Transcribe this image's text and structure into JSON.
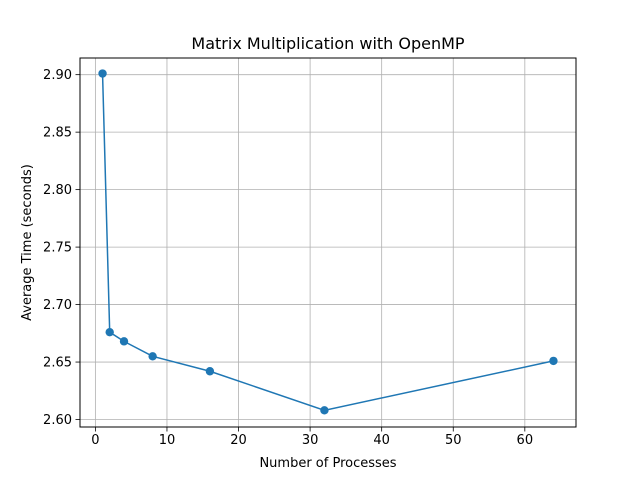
{
  "chart_data": {
    "type": "line",
    "title": "Matrix Multiplication with OpenMP",
    "xlabel": "Number of Processes",
    "ylabel": "Average Time (seconds)",
    "xlim": [
      -2.15,
      67.15
    ],
    "ylim": [
      2.5935,
      2.9145
    ],
    "xticks": [
      0,
      10,
      20,
      30,
      40,
      50,
      60
    ],
    "xtick_labels": [
      "0",
      "10",
      "20",
      "30",
      "40",
      "50",
      "60"
    ],
    "yticks": [
      2.6,
      2.65,
      2.7,
      2.75,
      2.8,
      2.85,
      2.9
    ],
    "ytick_labels": [
      "2.60",
      "2.65",
      "2.70",
      "2.75",
      "2.80",
      "2.85",
      "2.90"
    ],
    "grid": true,
    "series": [
      {
        "x": [
          1,
          2,
          4,
          8,
          16,
          32,
          64
        ],
        "y": [
          2.901,
          2.676,
          2.668,
          2.655,
          2.642,
          2.608,
          2.651
        ],
        "color": "#1f77b4",
        "marker": "circle"
      }
    ]
  }
}
